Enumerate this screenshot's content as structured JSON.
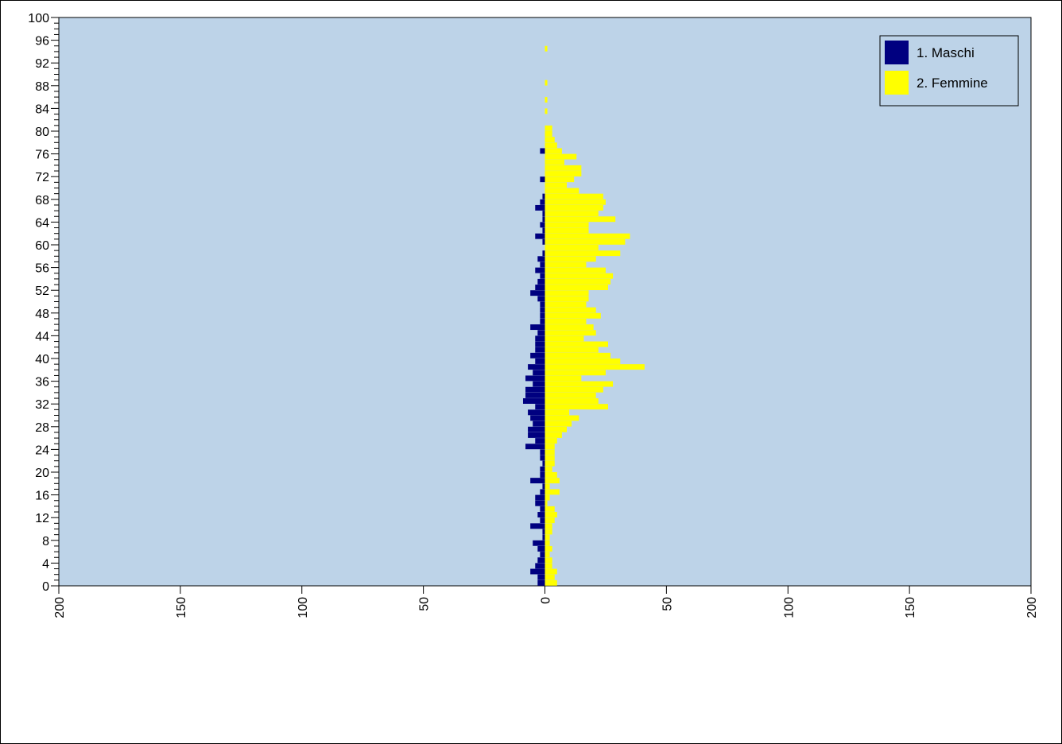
{
  "chart_data": {
    "type": "bar",
    "orientation": "horizontal-population-pyramid",
    "plot_background": "#bdd3e8",
    "x_ticks": [
      "200",
      "150",
      "100",
      "50",
      "0",
      "50",
      "100",
      "150",
      "200"
    ],
    "y_ticks": [
      "0",
      "4",
      "8",
      "12",
      "16",
      "20",
      "24",
      "28",
      "32",
      "36",
      "40",
      "44",
      "48",
      "52",
      "56",
      "60",
      "64",
      "68",
      "72",
      "76",
      "80",
      "84",
      "88",
      "92",
      "96",
      "100"
    ],
    "xlim": [
      -200,
      200
    ],
    "ylim": [
      0,
      100
    ],
    "legend_position": "top-right",
    "ages": [
      0,
      1,
      2,
      3,
      4,
      5,
      6,
      7,
      8,
      9,
      10,
      11,
      12,
      13,
      14,
      15,
      16,
      17,
      18,
      19,
      20,
      21,
      22,
      23,
      24,
      25,
      26,
      27,
      28,
      29,
      30,
      31,
      32,
      33,
      34,
      35,
      36,
      37,
      38,
      39,
      40,
      41,
      42,
      43,
      44,
      45,
      46,
      47,
      48,
      49,
      50,
      51,
      52,
      53,
      54,
      55,
      56,
      57,
      58,
      59,
      60,
      61,
      62,
      63,
      64,
      65,
      66,
      67,
      68,
      69,
      70,
      71,
      72,
      73,
      74,
      75,
      76,
      77,
      78,
      79,
      80,
      81,
      82,
      83,
      84,
      85,
      86,
      87,
      88,
      89,
      90,
      91,
      92,
      93,
      94,
      95,
      96,
      97,
      98,
      99,
      100
    ],
    "series": [
      {
        "name": "1. Maschi",
        "color": "#000080",
        "side": "left",
        "values": [
          3,
          3,
          6,
          4,
          3,
          2,
          3,
          5,
          1,
          1,
          6,
          2,
          3,
          2,
          4,
          4,
          2,
          1,
          6,
          2,
          2,
          1,
          2,
          2,
          8,
          4,
          7,
          7,
          5,
          6,
          7,
          4,
          9,
          8,
          8,
          5,
          8,
          5,
          7,
          4,
          6,
          4,
          4,
          4,
          3,
          6,
          2,
          2,
          2,
          2,
          3,
          6,
          4,
          3,
          2,
          4,
          2,
          3,
          1,
          0,
          1,
          4,
          1,
          2,
          1,
          1,
          4,
          2,
          1,
          0,
          0,
          2,
          0,
          0,
          0,
          0,
          2,
          0,
          0,
          0,
          0,
          0,
          0,
          0,
          0,
          0,
          0,
          0,
          0,
          0,
          0,
          0,
          0,
          0,
          0,
          0,
          0,
          0,
          0,
          0,
          0
        ]
      },
      {
        "name": "2. Femmine",
        "color": "#ffff00",
        "side": "right",
        "values": [
          5,
          4,
          5,
          3,
          3,
          2,
          3,
          2,
          2,
          3,
          3,
          4,
          5,
          4,
          1,
          2,
          6,
          2,
          6,
          5,
          3,
          4,
          4,
          4,
          4,
          5,
          7,
          9,
          11,
          14,
          10,
          26,
          22,
          21,
          24,
          28,
          15,
          25,
          41,
          31,
          27,
          22,
          26,
          16,
          21,
          20,
          17,
          23,
          21,
          17,
          18,
          18,
          26,
          27,
          28,
          25,
          17,
          21,
          31,
          22,
          33,
          35,
          18,
          18,
          29,
          22,
          24,
          25,
          24,
          14,
          9,
          12,
          15,
          15,
          8,
          13,
          7,
          5,
          4,
          3,
          3,
          0,
          0,
          1,
          0,
          1,
          0,
          0,
          1,
          0,
          0,
          0,
          0,
          0,
          1,
          0,
          0,
          0,
          0,
          0,
          0
        ],
        "_note_unused": ""
      }
    ]
  }
}
